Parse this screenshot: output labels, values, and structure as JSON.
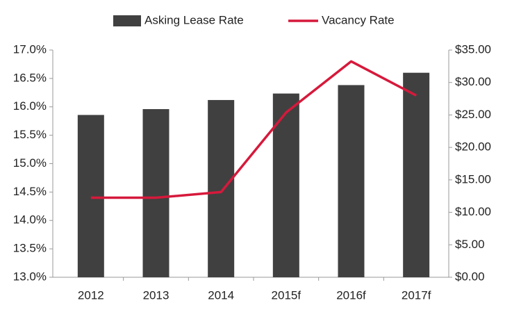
{
  "chart_data": {
    "type": "bar-line",
    "categories": [
      "2012",
      "2013",
      "2014",
      "2015f",
      "2016f",
      "2017f"
    ],
    "series": [
      {
        "name": "Asking Lease Rate",
        "color": "#404040",
        "type": "bar",
        "axis": "y2",
        "values": [
          25.0,
          25.9,
          27.3,
          28.3,
          29.6,
          31.5
        ]
      },
      {
        "name": "Vacancy Rate",
        "color": "#d6193b",
        "type": "line",
        "axis": "y",
        "values": [
          14.4,
          14.4,
          14.5,
          15.9,
          16.8,
          16.2
        ]
      }
    ],
    "ylim": [
      13,
      17
    ],
    "yticks": [
      {
        "value": 13,
        "label": "13.0%"
      },
      {
        "value": 13.5,
        "label": "13.5%"
      },
      {
        "value": 14,
        "label": "14.0%"
      },
      {
        "value": 14.5,
        "label": "14.5%"
      },
      {
        "value": 15,
        "label": "15.0%"
      },
      {
        "value": 15.5,
        "label": "15.5%"
      },
      {
        "value": 16,
        "label": "16.0%"
      },
      {
        "value": 16.5,
        "label": "16.5%"
      },
      {
        "value": 17,
        "label": "17.0%"
      }
    ],
    "y2lim": [
      0,
      35
    ],
    "y2ticks": [
      {
        "value": 0,
        "label": "$0.00"
      },
      {
        "value": 5,
        "label": "$5.00"
      },
      {
        "value": 10,
        "label": "$10.00"
      },
      {
        "value": 15,
        "label": "$15.00"
      },
      {
        "value": 20,
        "label": "$20.00"
      },
      {
        "value": 25,
        "label": "$25.00"
      },
      {
        "value": 30,
        "label": "$30.00"
      },
      {
        "value": 35,
        "label": "$35.00"
      }
    ],
    "legend": "top"
  }
}
